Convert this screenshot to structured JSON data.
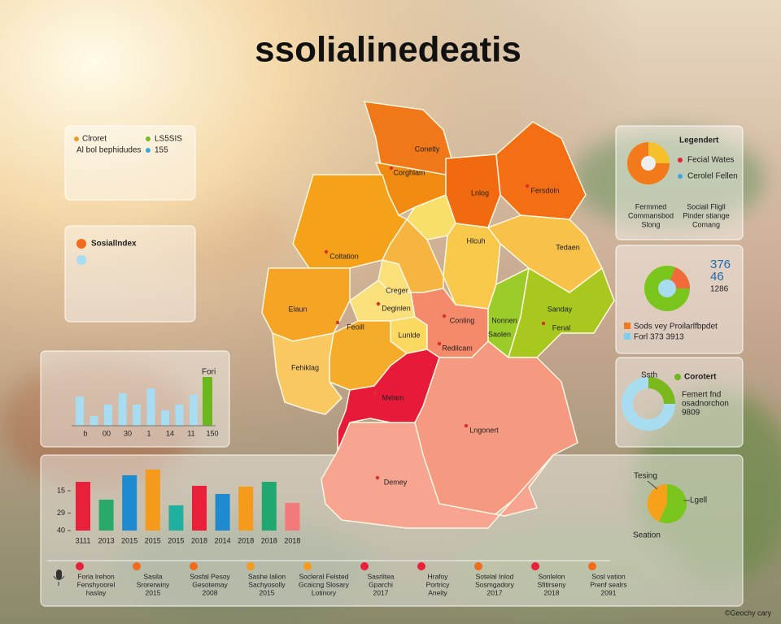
{
  "title": "ssolialinedeatis",
  "panel_a": {
    "item1": "Clroret",
    "item2": "LS5SIS",
    "item3": "Al bol bephidudes",
    "item4": "155"
  },
  "panel_b": {
    "item1": "Sosiallndex"
  },
  "small_chart": {
    "label": "Fori",
    "values": [
      36,
      12,
      26,
      40,
      26,
      46,
      19,
      26,
      38,
      60
    ],
    "colors": [
      "#a8dcf0",
      "#a8dcf0",
      "#a8dcf0",
      "#a8dcf0",
      "#a8dcf0",
      "#a8dcf0",
      "#a8dcf0",
      "#a8dcf0",
      "#a8dcf0",
      "#6cb81c"
    ],
    "x_labels": [
      "b",
      "00",
      "30",
      "1",
      "14",
      "11",
      "150"
    ]
  },
  "main_chart": {
    "ylim": [
      40,
      0
    ],
    "yticks": [
      15,
      29,
      40
    ],
    "values": [
      9.4,
      20.6,
      5.3,
      1.7,
      24.2,
      11.9,
      17,
      12.4,
      9.4,
      22.6
    ],
    "colors": [
      "#e8203a",
      "#2aaa6a",
      "#1e8ad0",
      "#f59a1a",
      "#20b0a0",
      "#e8203a",
      "#1e8ad0",
      "#f59a1a",
      "#20a870",
      "#f27a7a"
    ],
    "categories": [
      "3111",
      "2013",
      "2015",
      "2015",
      "2015",
      "2018",
      "2014",
      "2018",
      "2018",
      "2018"
    ]
  },
  "map": {
    "regions": [
      "Conetly",
      "Corghlam",
      "Lnlog",
      "Fersdoln",
      "Hlcuh",
      "Tedaen",
      "Coltation",
      "Creger",
      "Deginlen",
      "Lunlde",
      "Elaun",
      "Feoill",
      "Fehiklag",
      "Conling",
      "Nonnen",
      "Sanday",
      "Fenal",
      "Saolen",
      "Redilcam",
      "Melam",
      "Lngonert",
      "Demey"
    ]
  },
  "legend_1": {
    "title": "Legendert",
    "item1": "Fecial Wates",
    "item2": "Cerolel Fellen",
    "note1": [
      "Fermmed",
      "Commansbod",
      "Slong"
    ],
    "note2": [
      "Sociail Fligll",
      "Pinder stiange",
      "Comang"
    ]
  },
  "legend_2": {
    "num1": "376",
    "num2": "46",
    "num3": "1286",
    "item1": "Sods vey Proilarlfbpdet",
    "item2": "Forl 373 3913"
  },
  "legend_3": {
    "title": "Ssth",
    "item1": "Corotert",
    "note": [
      "Femert fnd",
      "osadnorchon",
      "9809"
    ]
  },
  "legend_4": {
    "item1": "Tesing",
    "item2": "Lgell",
    "item3": "Seation"
  },
  "strip": [
    [
      "Foria lrehon",
      "Fenshyoorel",
      "haslay"
    ],
    [
      "Sasila",
      "Srorerwiny",
      "2015"
    ],
    [
      "Sosfal Pesoy",
      "Gesotemay",
      "2008"
    ],
    [
      "Sashe lalion",
      "Sachyosolly",
      "2015"
    ],
    [
      "Socleral Felsted",
      "Gcaicng Slosary",
      "Lotinory"
    ],
    [
      "Sasrlitea",
      "Gparchi",
      "2017"
    ],
    [
      "Hrafoy",
      "Portricy",
      "Anelty"
    ],
    [
      "Sotelal Inlod",
      "Sosmgadory",
      "2017"
    ],
    [
      "Sonlelon",
      "Sfitirseny",
      "2018"
    ],
    [
      "Sosl vation",
      "Prenf sealrs",
      "2091"
    ]
  ],
  "credit": "©Geochy cary"
}
